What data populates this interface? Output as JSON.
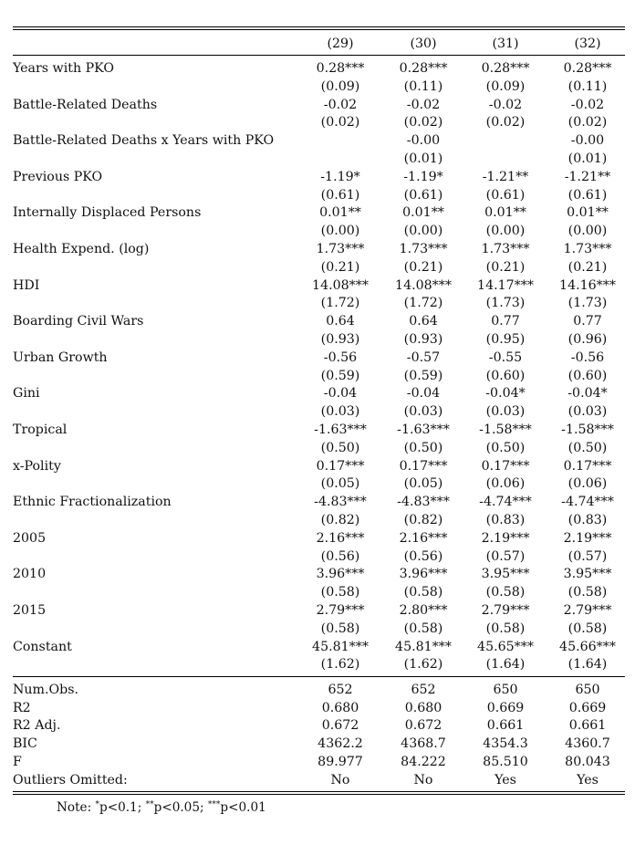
{
  "columns": [
    "(29)",
    "(30)",
    "(31)",
    "(32)"
  ],
  "rows": [
    {
      "label": "Years with PKO",
      "coef": [
        "0.28***",
        "0.28***",
        "0.28***",
        "0.28***"
      ],
      "se": [
        "(0.09)",
        "(0.11)",
        "(0.09)",
        "(0.11)"
      ]
    },
    {
      "label": "Battle-Related Deaths",
      "coef": [
        "-0.02",
        "-0.02",
        "-0.02",
        "-0.02"
      ],
      "se": [
        "(0.02)",
        "(0.02)",
        "(0.02)",
        "(0.02)"
      ]
    },
    {
      "label": "Battle-Related Deaths x Years with PKO",
      "coef": [
        "",
        "-0.00",
        "",
        "-0.00"
      ],
      "se": [
        "",
        "(0.01)",
        "",
        "(0.01)"
      ]
    },
    {
      "label": "Previous PKO",
      "coef": [
        "-1.19*",
        "-1.19*",
        "-1.21**",
        "-1.21**"
      ],
      "se": [
        "(0.61)",
        "(0.61)",
        "(0.61)",
        "(0.61)"
      ]
    },
    {
      "label": "Internally Displaced Persons",
      "coef": [
        "0.01**",
        "0.01**",
        "0.01**",
        "0.01**"
      ],
      "se": [
        "(0.00)",
        "(0.00)",
        "(0.00)",
        "(0.00)"
      ]
    },
    {
      "label": "Health Expend. (log)",
      "coef": [
        "1.73***",
        "1.73***",
        "1.73***",
        "1.73***"
      ],
      "se": [
        "(0.21)",
        "(0.21)",
        "(0.21)",
        "(0.21)"
      ]
    },
    {
      "label": "HDI",
      "coef": [
        "14.08***",
        "14.08***",
        "14.17***",
        "14.16***"
      ],
      "se": [
        "(1.72)",
        "(1.72)",
        "(1.73)",
        "(1.73)"
      ]
    },
    {
      "label": "Boarding Civil Wars",
      "coef": [
        "0.64",
        "0.64",
        "0.77",
        "0.77"
      ],
      "se": [
        "(0.93)",
        "(0.93)",
        "(0.95)",
        "(0.96)"
      ]
    },
    {
      "label": "Urban Growth",
      "coef": [
        "-0.56",
        "-0.57",
        "-0.55",
        "-0.56"
      ],
      "se": [
        "(0.59)",
        "(0.59)",
        "(0.60)",
        "(0.60)"
      ]
    },
    {
      "label": "Gini",
      "coef": [
        "-0.04",
        "-0.04",
        "-0.04*",
        "-0.04*"
      ],
      "se": [
        "(0.03)",
        "(0.03)",
        "(0.03)",
        "(0.03)"
      ]
    },
    {
      "label": "Tropical",
      "coef": [
        "-1.63***",
        "-1.63***",
        "-1.58***",
        "-1.58***"
      ],
      "se": [
        "(0.50)",
        "(0.50)",
        "(0.50)",
        "(0.50)"
      ]
    },
    {
      "label": "x-Polity",
      "coef": [
        "0.17***",
        "0.17***",
        "0.17***",
        "0.17***"
      ],
      "se": [
        "(0.05)",
        "(0.05)",
        "(0.06)",
        "(0.06)"
      ]
    },
    {
      "label": "Ethnic Fractionalization",
      "coef": [
        "-4.83***",
        "-4.83***",
        "-4.74***",
        "-4.74***"
      ],
      "se": [
        "(0.82)",
        "(0.82)",
        "(0.83)",
        "(0.83)"
      ]
    },
    {
      "label": "2005",
      "coef": [
        "2.16***",
        "2.16***",
        "2.19***",
        "2.19***"
      ],
      "se": [
        "(0.56)",
        "(0.56)",
        "(0.57)",
        "(0.57)"
      ]
    },
    {
      "label": "2010",
      "coef": [
        "3.96***",
        "3.96***",
        "3.95***",
        "3.95***"
      ],
      "se": [
        "(0.58)",
        "(0.58)",
        "(0.58)",
        "(0.58)"
      ]
    },
    {
      "label": "2015",
      "coef": [
        "2.79***",
        "2.80***",
        "2.79***",
        "2.79***"
      ],
      "se": [
        "(0.58)",
        "(0.58)",
        "(0.58)",
        "(0.58)"
      ]
    },
    {
      "label": "Constant",
      "coef": [
        "45.81***",
        "45.81***",
        "45.65***",
        "45.66***"
      ],
      "se": [
        "(1.62)",
        "(1.62)",
        "(1.64)",
        "(1.64)"
      ]
    }
  ],
  "stats": [
    {
      "label": "Num.Obs.",
      "values": [
        "652",
        "652",
        "650",
        "650"
      ]
    },
    {
      "label": "R2",
      "values": [
        "0.680",
        "0.680",
        "0.669",
        "0.669"
      ]
    },
    {
      "label": "R2 Adj.",
      "values": [
        "0.672",
        "0.672",
        "0.661",
        "0.661"
      ]
    },
    {
      "label": "BIC",
      "values": [
        "4362.2",
        "4368.7",
        "4354.3",
        "4360.7"
      ]
    },
    {
      "label": "F",
      "values": [
        "89.977",
        "84.222",
        "85.510",
        "80.043"
      ]
    },
    {
      "label": "Outliers Omitted:",
      "values": [
        "No",
        "No",
        "Yes",
        "Yes"
      ]
    }
  ],
  "note": {
    "prefix": "Note: ",
    "items": [
      {
        "mark": "*",
        "text": "p<0.1; "
      },
      {
        "mark": "**",
        "text": "p<0.05; "
      },
      {
        "mark": "***",
        "text": "p<0.01"
      }
    ]
  }
}
